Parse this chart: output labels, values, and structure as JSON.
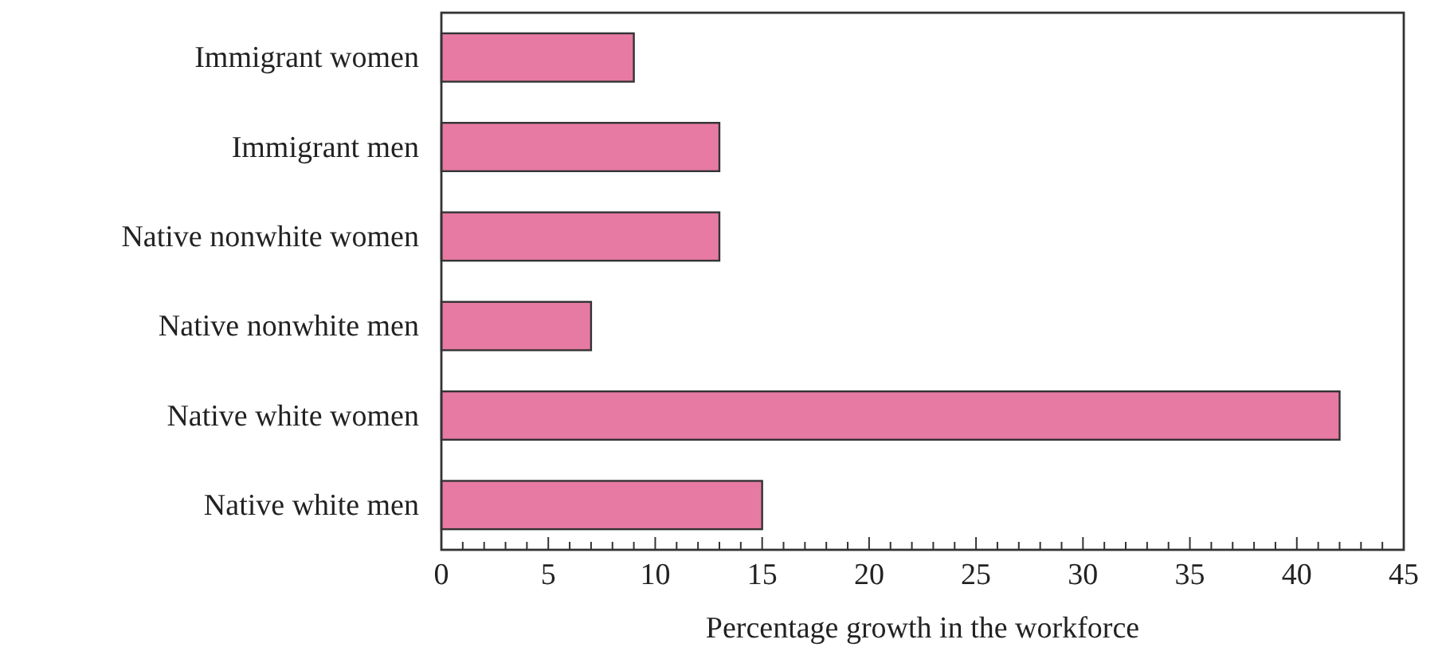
{
  "chart_data": {
    "type": "bar",
    "orientation": "horizontal",
    "xlabel": "Percentage growth in the workforce",
    "categories": [
      "Immigrant women",
      "Immigrant men",
      "Native nonwhite women",
      "Native nonwhite men",
      "Native white women",
      "Native white men"
    ],
    "values": [
      9,
      13,
      13,
      7,
      42,
      15
    ],
    "color": "#e67aa3",
    "xlim": [
      0,
      45
    ],
    "xticks": [
      0,
      {
        "value": 1,
        "label": null
      },
      {
        "value": 2,
        "label": null
      },
      {
        "value": 3,
        "label": null
      },
      {
        "value": 4,
        "label": null
      },
      5,
      {
        "value": 6,
        "label": null
      },
      {
        "value": 7,
        "label": null
      },
      {
        "value": 8,
        "label": null
      },
      {
        "value": 9,
        "label": null
      },
      10,
      {
        "value": 11,
        "label": null
      },
      {
        "value": 12,
        "label": null
      },
      {
        "value": 13,
        "label": null
      },
      {
        "value": 14,
        "label": null
      },
      15,
      {
        "value": 16,
        "label": null
      },
      {
        "value": 17,
        "label": null
      },
      {
        "value": 18,
        "label": null
      },
      {
        "value": 19,
        "label": null
      },
      20,
      {
        "value": 21,
        "label": null
      },
      {
        "value": 22,
        "label": null
      },
      {
        "value": 23,
        "label": null
      },
      {
        "value": 24,
        "label": null
      },
      25,
      {
        "value": 26,
        "label": null
      },
      {
        "value": 27,
        "label": null
      },
      {
        "value": 28,
        "label": null
      },
      {
        "value": 29,
        "label": null
      },
      30,
      {
        "value": 31,
        "label": null
      },
      {
        "value": 32,
        "label": null
      },
      {
        "value": 33,
        "label": null
      },
      {
        "value": 34,
        "label": null
      },
      35,
      {
        "value": 36,
        "label": null
      },
      {
        "value": 37,
        "label": null
      },
      {
        "value": 38,
        "label": null
      },
      {
        "value": 39,
        "label": null
      },
      40,
      {
        "value": 41,
        "label": null
      },
      {
        "value": 42,
        "label": null
      },
      {
        "value": 43,
        "label": null
      },
      {
        "value": 44,
        "label": null
      },
      45
    ],
    "grid": false
  }
}
